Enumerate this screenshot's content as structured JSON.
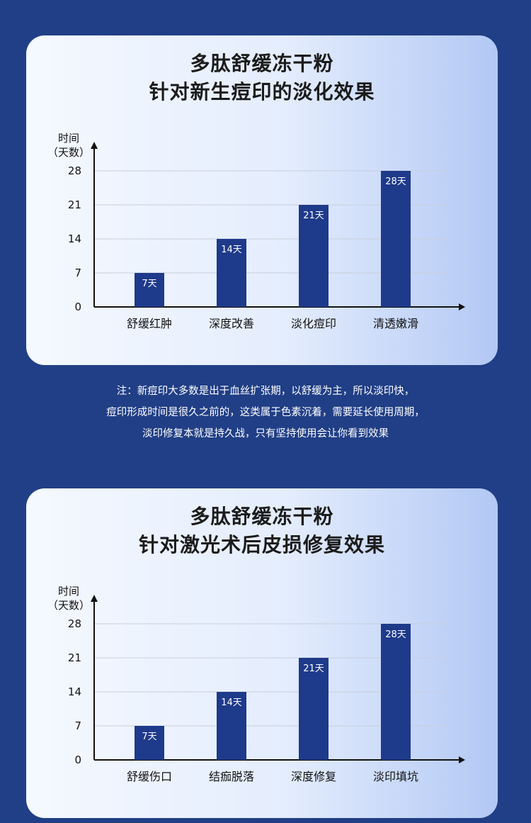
{
  "colors": {
    "bar": "#1e3a8a",
    "axis": "#111111",
    "grid": "#c9cfd9",
    "page_bg": "#213f86"
  },
  "charts": [
    {
      "title_line1": "多肽舒缓冻干粉",
      "title_line2": "针对新生痘印的淡化效果"
    },
    {
      "title_line1": "多肽舒缓冻干粉",
      "title_line2": "针对激光术后皮损修复效果"
    }
  ],
  "note": {
    "lines": [
      "注：新痘印大多数是出于血丝扩张期，以舒缓为主，所以淡印快，",
      "痘印形成时间是很久之前的，这类属于色素沉着，需要延长使用周期，",
      "淡印修复本就是持久战，只有坚持使用会让你看到效果"
    ]
  },
  "chart_data": [
    {
      "type": "bar",
      "title": "多肽舒缓冻干粉 针对新生痘印的淡化效果",
      "ylabel": "时间（天数）",
      "xlabel": "",
      "categories": [
        "舒缓红肿",
        "深度改善",
        "淡化痘印",
        "清透嫩滑"
      ],
      "values": [
        7,
        14,
        21,
        28
      ],
      "data_labels": [
        "7天",
        "14天",
        "21天",
        "28天"
      ],
      "yticks": [
        0,
        7,
        14,
        21,
        28
      ],
      "ylim": [
        0,
        28
      ],
      "grid": true
    },
    {
      "type": "bar",
      "title": "多肽舒缓冻干粉 针对激光术后皮损修复效果",
      "ylabel": "时间（天数）",
      "xlabel": "",
      "categories": [
        "舒缓伤口",
        "结痂脱落",
        "深度修复",
        "淡印填坑"
      ],
      "values": [
        7,
        14,
        21,
        28
      ],
      "data_labels": [
        "7天",
        "14天",
        "21天",
        "28天"
      ],
      "yticks": [
        0,
        7,
        14,
        21,
        28
      ],
      "ylim": [
        0,
        28
      ],
      "grid": true
    }
  ]
}
